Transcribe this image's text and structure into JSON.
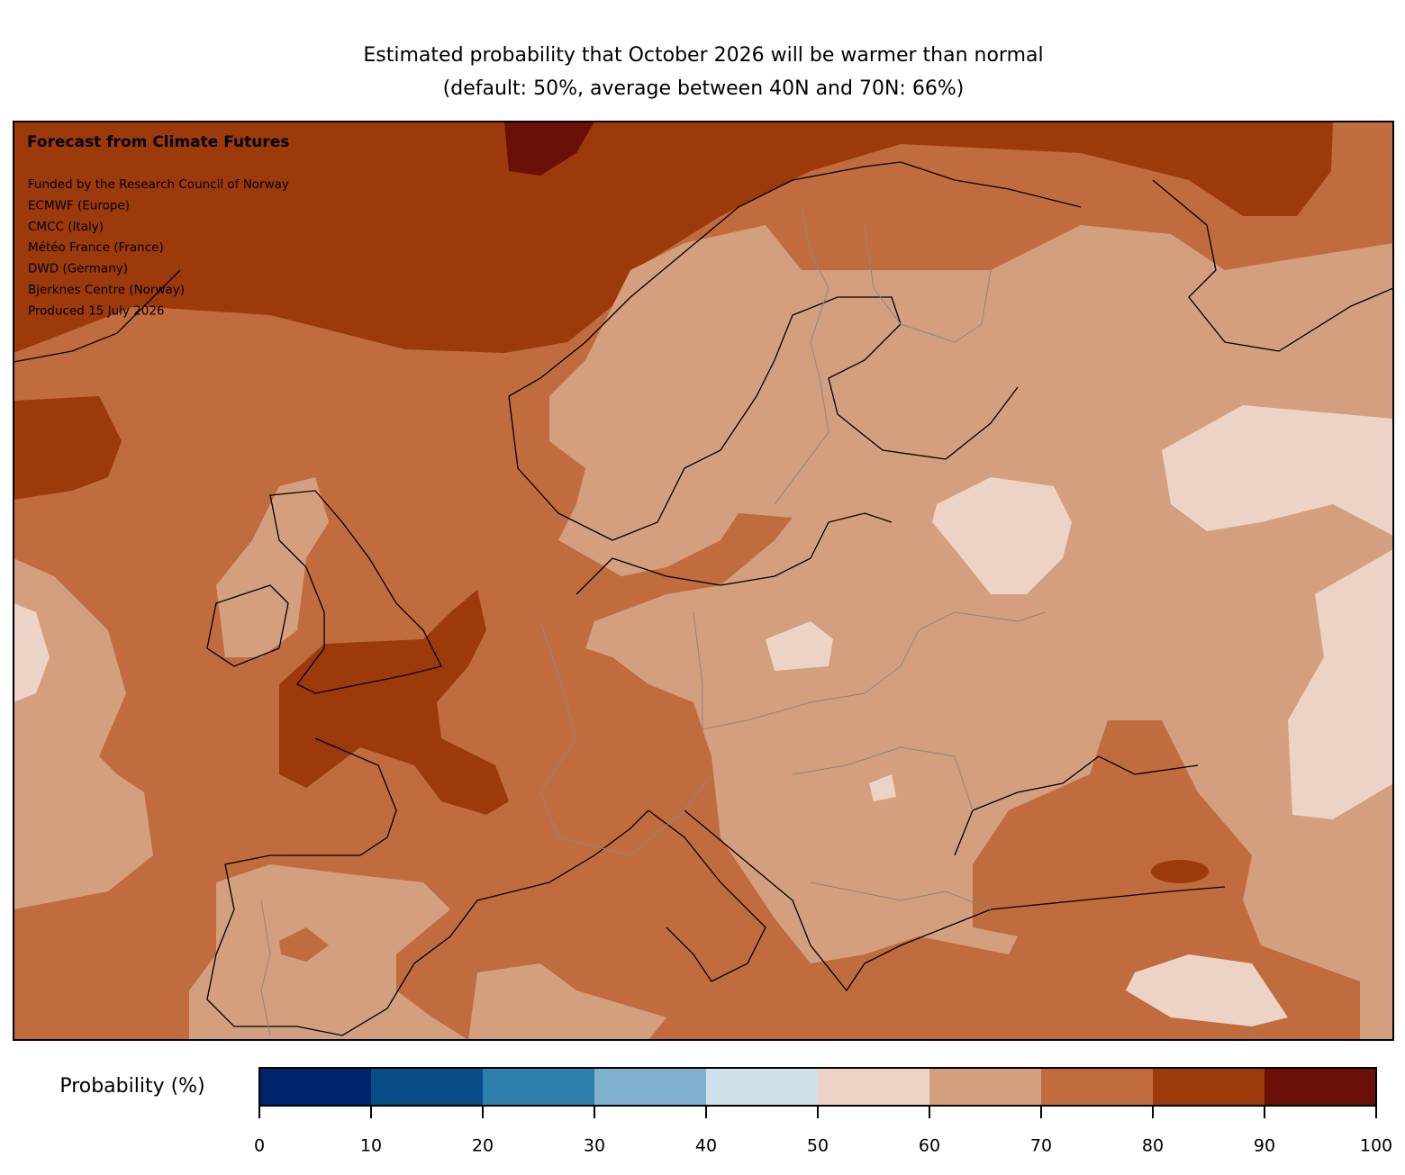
{
  "title": [
    "Estimated probability that October 2026 will be warmer than normal",
    "(default: 50%, average between 40N and 70N: 66%)"
  ],
  "annotation": {
    "heading": "Forecast from Climate Futures",
    "lines": [
      "Funded by the Research Council of Norway",
      "ECMWF (Europe)",
      "CMCC (Italy)",
      "Météo France (France)",
      "DWD (Germany)",
      "Bjerknes Centre (Norway)",
      "Produced 15 July 2026"
    ]
  },
  "colorbar": {
    "label": "Probability (%)",
    "lim": [
      0,
      100
    ],
    "ticks": [
      0,
      10,
      20,
      30,
      40,
      50,
      60,
      70,
      80,
      90,
      100
    ],
    "colors": [
      "#00246b",
      "#084d87",
      "#2e7eab",
      "#7fb0cc",
      "#cfe0ea",
      "#edd3c5",
      "#d49f7e",
      "#c06c3e",
      "#9c3a0c",
      "#6b0f09"
    ]
  }
}
